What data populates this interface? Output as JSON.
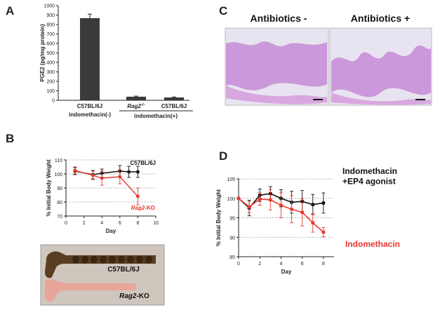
{
  "panels": {
    "A": {
      "letter": "A"
    },
    "B": {
      "letter": "B"
    },
    "C": {
      "letter": "C"
    },
    "D": {
      "letter": "D"
    }
  },
  "chart_data": [
    {
      "id": "A",
      "type": "bar",
      "ylabel": "PGE2 (pg/mg protein)",
      "ylim": [
        0,
        1000
      ],
      "yticks": [
        0,
        100,
        200,
        300,
        400,
        500,
        600,
        700,
        800,
        900,
        1000
      ],
      "categories": [
        "C57BL/6J",
        "Rag2",
        "C57BL/6J"
      ],
      "category_superscripts": [
        "",
        "-/-",
        ""
      ],
      "values": [
        868,
        38,
        30
      ],
      "errors": [
        42,
        6,
        5
      ],
      "group_labels": [
        "indomethacin(-)",
        "indomethacin(+)"
      ],
      "bar_color": "#3a3a3a"
    },
    {
      "id": "B",
      "type": "line",
      "xlabel": "Day",
      "ylabel": "% Initial Body Weight",
      "xlim": [
        0,
        10
      ],
      "ylim": [
        70,
        110
      ],
      "xticks": [
        0,
        2,
        4,
        6,
        8,
        10
      ],
      "yticks": [
        70,
        80,
        90,
        100,
        110
      ],
      "grid": true,
      "series": [
        {
          "name": "C57BL/6J",
          "color": "#111111",
          "x": [
            1,
            3,
            4,
            6,
            7,
            8
          ],
          "y": [
            102,
            99.5,
            100.5,
            102,
            101.5,
            101.5
          ],
          "err": [
            2.5,
            3,
            3,
            4,
            4,
            4
          ]
        },
        {
          "name": "Rag2-KO",
          "color": "#e8392f",
          "x": [
            1,
            3,
            4,
            6,
            8
          ],
          "y": [
            102.5,
            99,
            97,
            98,
            84
          ],
          "err": [
            2.5,
            3,
            5,
            5,
            6
          ]
        }
      ]
    },
    {
      "id": "D",
      "type": "line",
      "xlabel": "Day",
      "ylabel": "% Initial Body Weight",
      "xlim": [
        0,
        9
      ],
      "ylim": [
        85,
        105
      ],
      "xticks": [
        0,
        2,
        4,
        6,
        8
      ],
      "yticks": [
        85,
        90,
        95,
        100,
        105
      ],
      "grid": true,
      "series": [
        {
          "name": "Indomethacin\n+EP4 agonist",
          "color": "#111111",
          "x": [
            0,
            1,
            2,
            3,
            4,
            5,
            6,
            7,
            8
          ],
          "y": [
            100,
            97.5,
            100.8,
            101.2,
            100,
            99,
            99.2,
            98.4,
            98.8
          ],
          "err": [
            0,
            2,
            1.6,
            1.8,
            2.2,
            2.8,
            2.8,
            2.6,
            2.6
          ]
        },
        {
          "name": "Indomethacin",
          "color": "#e8392f",
          "x": [
            0,
            1,
            2,
            3,
            4,
            5,
            6,
            7,
            8
          ],
          "y": [
            100,
            97.8,
            99.8,
            99.6,
            98.2,
            97.2,
            96.4,
            93.7,
            91.3
          ],
          "err": [
            0,
            1.4,
            1.6,
            2.6,
            3.2,
            3.5,
            3.5,
            2.4,
            1.2
          ]
        }
      ]
    }
  ],
  "histology": {
    "label_left": "Antibiotics -",
    "label_right": "Antibiotics +",
    "stain_color": "#c88fd8",
    "background_color": "#e8e3f0"
  },
  "intestine_photo": {
    "label_top": "C57BL/6J",
    "label_bottom_italic": "Rag2",
    "label_bottom_suffix": "-KO",
    "background_color": "#cfc6bd",
    "wt_color": "#5a3e22",
    "ko_color": "#e8a59a"
  }
}
